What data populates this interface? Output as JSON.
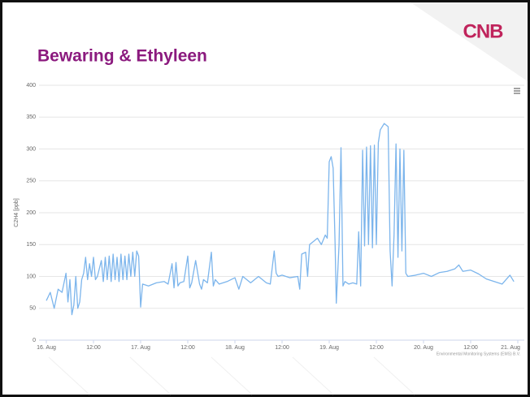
{
  "logo": "CNB",
  "chart_data": {
    "type": "line",
    "title": "Bewaring & Ethyleen",
    "y_label": "C2H4 [ppb]",
    "credits": "Environmental Monitoring Systems (EMS) B.V.",
    "color": "#7cb5ec",
    "grid": true,
    "xlim": [
      0,
      120
    ],
    "xticks": [
      {
        "value": 0,
        "label": "16. Aug"
      },
      {
        "value": 12,
        "label": "12:00"
      },
      {
        "value": 24,
        "label": "17. Aug"
      },
      {
        "value": 36,
        "label": "12:00"
      },
      {
        "value": 48,
        "label": "18. Aug"
      },
      {
        "value": 60,
        "label": "12:00"
      },
      {
        "value": 72,
        "label": "19. Aug"
      },
      {
        "value": 84,
        "label": "12:00"
      },
      {
        "value": 96,
        "label": "20. Aug"
      },
      {
        "value": 108,
        "label": "12:00"
      },
      {
        "value": 120,
        "label": "21. Aug"
      }
    ],
    "ylim": [
      0,
      400
    ],
    "yticks": [
      0,
      50,
      100,
      150,
      200,
      250,
      300,
      350,
      400
    ],
    "x": [
      0,
      1,
      2,
      3,
      4,
      5,
      5.5,
      6,
      6.5,
      7,
      7.5,
      8,
      8.5,
      9,
      9.5,
      10,
      10.5,
      11,
      11.5,
      12,
      12.5,
      13,
      14,
      14.5,
      15,
      15.5,
      16,
      16.5,
      17,
      17.5,
      18,
      18.5,
      19,
      19.5,
      20,
      20.5,
      21,
      21.5,
      22,
      22.5,
      23,
      23.5,
      24,
      24.5,
      26,
      28,
      30,
      31,
      32,
      32.5,
      33,
      33.5,
      34,
      35,
      36,
      36.5,
      37,
      38,
      39,
      39.5,
      40,
      41,
      42,
      42.5,
      43,
      44,
      46,
      48,
      49,
      50,
      51,
      52,
      54,
      56,
      57,
      58,
      58.5,
      59,
      60,
      62,
      64,
      64.5,
      65,
      66,
      66.5,
      67,
      68,
      69,
      70,
      71,
      71.5,
      72,
      72.5,
      73,
      73.5,
      73.8,
      74.5,
      75,
      75.5,
      76,
      77,
      78,
      79,
      79.5,
      80,
      80.5,
      81,
      81.5,
      82,
      82.5,
      83,
      83.5,
      84,
      84.5,
      85,
      86,
      87,
      87.5,
      88,
      88.5,
      89,
      89.5,
      90,
      90.5,
      91,
      91.5,
      92,
      94,
      96,
      98,
      100,
      102,
      104,
      105,
      106,
      108,
      110,
      112,
      114,
      116,
      118,
      119
    ],
    "values": [
      62,
      75,
      50,
      80,
      75,
      105,
      60,
      95,
      40,
      55,
      100,
      50,
      60,
      95,
      105,
      130,
      95,
      120,
      100,
      130,
      95,
      100,
      125,
      92,
      130,
      95,
      132,
      92,
      135,
      95,
      130,
      92,
      135,
      95,
      132,
      95,
      135,
      100,
      138,
      100,
      140,
      132,
      52,
      88,
      85,
      90,
      92,
      88,
      120,
      82,
      122,
      85,
      90,
      92,
      132,
      82,
      90,
      125,
      88,
      80,
      95,
      90,
      138,
      85,
      95,
      88,
      92,
      98,
      80,
      100,
      95,
      90,
      100,
      90,
      88,
      140,
      105,
      100,
      102,
      98,
      100,
      80,
      135,
      138,
      100,
      150,
      155,
      160,
      150,
      165,
      160,
      280,
      288,
      270,
      150,
      58,
      150,
      302,
      85,
      92,
      88,
      90,
      88,
      170,
      85,
      298,
      148,
      303,
      150,
      305,
      145,
      306,
      150,
      310,
      330,
      340,
      335,
      140,
      85,
      165,
      308,
      130,
      300,
      140,
      298,
      105,
      100,
      102,
      105,
      100,
      106,
      108,
      112,
      118,
      108,
      110,
      104,
      96,
      92,
      88,
      102,
      92
    ]
  }
}
